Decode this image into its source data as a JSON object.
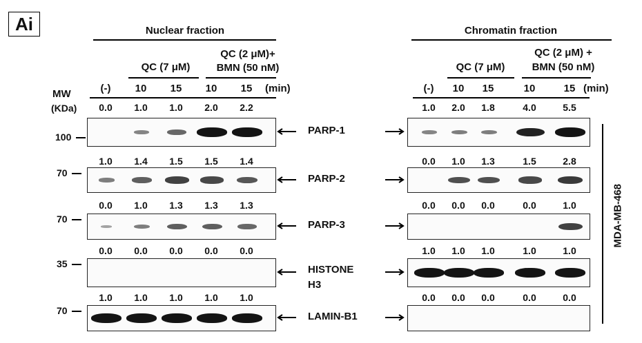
{
  "panel_label": "Ai",
  "nuclear": {
    "title": "Nuclear fraction",
    "header": {
      "qc7": "QC (7 μM)",
      "combo_line1": "QC (2 μM)+",
      "combo_line2": "BMN (50 nM)",
      "lanes": [
        "(-)",
        "10",
        "15",
        "10",
        "15"
      ],
      "unit": "(min)"
    },
    "mw_title_line1": "MW",
    "mw_title_line2": "(KDa)",
    "blots": [
      {
        "marker": "100",
        "quant": [
          "0.0",
          "1.0",
          "1.0",
          "2.0",
          "2.2"
        ],
        "bands": [
          0,
          0.25,
          0.45,
          1.0,
          1.0
        ]
      },
      {
        "marker": "70",
        "quant": [
          "1.0",
          "1.4",
          "1.5",
          "1.5",
          "1.4"
        ],
        "bands": [
          0.3,
          0.5,
          0.7,
          0.65,
          0.55
        ]
      },
      {
        "marker": "70",
        "quant": [
          "0.0",
          "1.0",
          "1.3",
          "1.3",
          "1.3"
        ],
        "bands": [
          0.05,
          0.3,
          0.5,
          0.5,
          0.45
        ]
      },
      {
        "marker": "35",
        "quant": [
          "0.0",
          "0.0",
          "0.0",
          "0.0",
          "0.0"
        ],
        "bands": [
          0,
          0,
          0,
          0,
          0
        ]
      },
      {
        "marker": "70",
        "quant": [
          "1.0",
          "1.0",
          "1.0",
          "1.0",
          "1.0"
        ],
        "bands": [
          1,
          1,
          1,
          1,
          1
        ]
      }
    ]
  },
  "chromatin": {
    "title": "Chromatin fraction",
    "header": {
      "qc7": "QC (7 μM)",
      "combo_line1": "QC (2 μM) +",
      "combo_line2": "BMN (50 nM)",
      "lanes": [
        "(-)",
        "10",
        "15",
        "10",
        "15"
      ],
      "unit": "(min)"
    },
    "blots": [
      {
        "quant": [
          "1.0",
          "2.0",
          "1.8",
          "4.0",
          "5.5"
        ],
        "bands": [
          0.25,
          0.3,
          0.3,
          0.9,
          1.0
        ]
      },
      {
        "quant": [
          "0.0",
          "1.0",
          "1.3",
          "1.5",
          "2.8"
        ],
        "bands": [
          0,
          0.6,
          0.6,
          0.65,
          0.75
        ]
      },
      {
        "quant": [
          "0.0",
          "0.0",
          "0.0",
          "0.0",
          "1.0"
        ],
        "bands": [
          0,
          0,
          0,
          0,
          0.7
        ]
      },
      {
        "quant": [
          "1.0",
          "1.0",
          "1.0",
          "1.0",
          "1.0"
        ],
        "bands": [
          1,
          1,
          1,
          1,
          1
        ]
      },
      {
        "quant": [
          "0.0",
          "0.0",
          "0.0",
          "0.0",
          "0.0"
        ],
        "bands": [
          0,
          0,
          0,
          0,
          0
        ]
      }
    ]
  },
  "proteins": [
    {
      "label": "PARP-1"
    },
    {
      "label": "PARP-2"
    },
    {
      "label": "PARP-3"
    },
    {
      "label_line1": "HISTONE",
      "label_line2": "H3"
    },
    {
      "label": "LAMIN-B1"
    }
  ],
  "cell_line": "MDA-MB-468"
}
